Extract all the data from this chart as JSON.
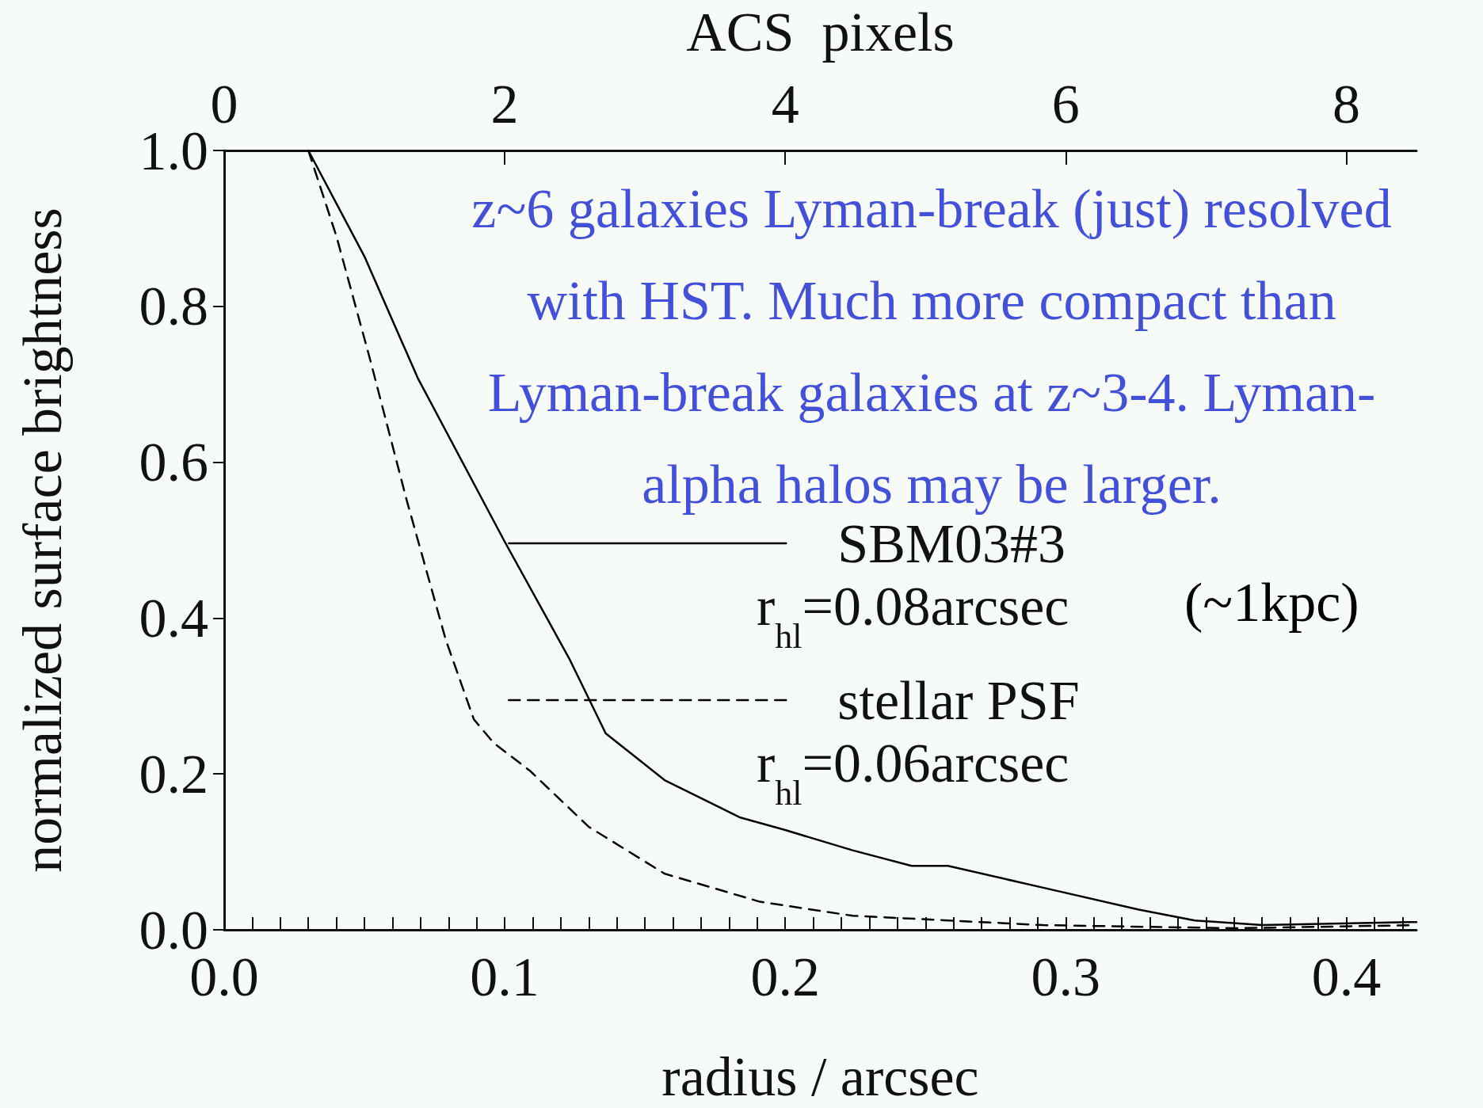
{
  "chart_data": {
    "type": "line",
    "xlabel": "radius / arcsec",
    "x2label": "ACS  pixels",
    "ylabel": "normalized surface brightness",
    "xlim": [
      0,
      0.425
    ],
    "xticks": [
      {
        "value": 0,
        "label": "0.0"
      },
      {
        "value": 0.01,
        "label": null
      },
      {
        "value": 0.02,
        "label": null
      },
      {
        "value": 0.03,
        "label": null
      },
      {
        "value": 0.04,
        "label": null
      },
      {
        "value": 0.05,
        "label": null
      },
      {
        "value": 0.06,
        "label": null
      },
      {
        "value": 0.07,
        "label": null
      },
      {
        "value": 0.08,
        "label": null
      },
      {
        "value": 0.09,
        "label": null
      },
      0.1,
      {
        "value": 0.11,
        "label": null
      },
      {
        "value": 0.12,
        "label": null
      },
      {
        "value": 0.13,
        "label": null
      },
      {
        "value": 0.14,
        "label": null
      },
      {
        "value": 0.15,
        "label": null
      },
      {
        "value": 0.16,
        "label": null
      },
      {
        "value": 0.17,
        "label": null
      },
      {
        "value": 0.18,
        "label": null
      },
      {
        "value": 0.19,
        "label": null
      },
      0.2,
      {
        "value": 0.21,
        "label": null
      },
      {
        "value": 0.22,
        "label": null
      },
      {
        "value": 0.23,
        "label": null
      },
      {
        "value": 0.24,
        "label": null
      },
      {
        "value": 0.25,
        "label": null
      },
      {
        "value": 0.26,
        "label": null
      },
      {
        "value": 0.27,
        "label": null
      },
      {
        "value": 0.28,
        "label": null
      },
      {
        "value": 0.29,
        "label": null
      },
      0.3,
      {
        "value": 0.31,
        "label": null
      },
      {
        "value": 0.32,
        "label": null
      },
      {
        "value": 0.33,
        "label": null
      },
      {
        "value": 0.34,
        "label": null
      },
      {
        "value": 0.35,
        "label": null
      },
      {
        "value": 0.36,
        "label": null
      },
      {
        "value": 0.37,
        "label": null
      },
      {
        "value": 0.38,
        "label": null
      },
      {
        "value": 0.39,
        "label": null
      },
      0.4,
      {
        "value": 0.41,
        "label": null
      },
      {
        "value": 0.42,
        "label": null
      }
    ],
    "x2lim": [
      0,
      8.5
    ],
    "x2ticks": [
      0,
      2,
      4,
      6,
      8
    ],
    "ylim": [
      0,
      1
    ],
    "yticks": [
      {
        "value": 0,
        "label": "0.0"
      },
      0.2,
      0.4,
      0.6,
      0.8,
      {
        "value": 1,
        "label": "1.0"
      }
    ],
    "grid": false,
    "legend": "right",
    "marker": "none",
    "series": [
      {
        "name": "SBM03#3",
        "color": "#000000",
        "line_style": "solid",
        "x": [
          0.03,
          0.05,
          0.069,
          0.1,
          0.123,
          0.136,
          0.157,
          0.184,
          0.2,
          0.224,
          0.245,
          0.258,
          0.292,
          0.326,
          0.346,
          0.37,
          0.425
        ],
        "values": [
          1.0,
          0.864,
          0.708,
          0.498,
          0.348,
          0.252,
          0.192,
          0.144,
          0.128,
          0.102,
          0.082,
          0.082,
          0.054,
          0.026,
          0.012,
          0.006,
          0.01
        ]
      },
      {
        "name": "stellar PSF",
        "color": "#000000",
        "line_style": "dashed",
        "x": [
          0.03,
          0.04,
          0.052,
          0.065,
          0.079,
          0.089,
          0.096,
          0.109,
          0.13,
          0.157,
          0.191,
          0.224,
          0.292,
          0.36,
          0.425
        ],
        "values": [
          1.0,
          0.89,
          0.732,
          0.552,
          0.372,
          0.27,
          0.24,
          0.204,
          0.132,
          0.072,
          0.036,
          0.018,
          0.006,
          0.002,
          0.006
        ]
      }
    ],
    "annotations": [
      "z~6 galaxies Lyman-break (just) resolved\nwith HST. Much more compact than\nLyman-break galaxies at z~3-4. Lyman-\nalpha halos may be larger.",
      "r$_{hl}$=0.08arcsec",
      "r$_{hl}$=0.06arcsec",
      "(~1kpc)"
    ]
  }
}
